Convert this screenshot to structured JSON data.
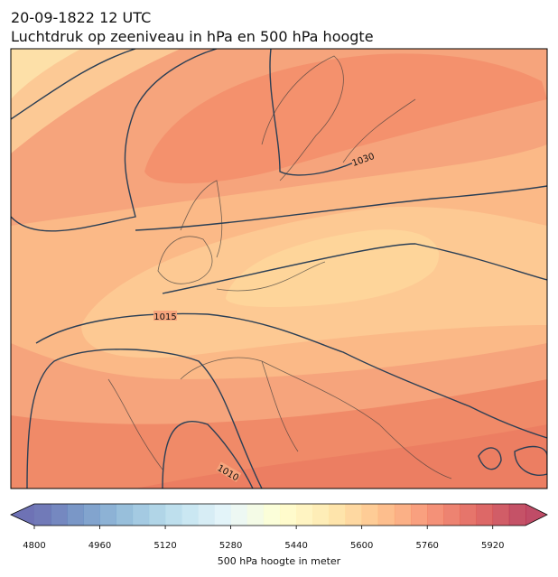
{
  "header": {
    "title": "20-09-1822 12 UTC",
    "subtitle": "Luchtdruk op zeeniveau in hPa en 500 hPa hoogte"
  },
  "map": {
    "contour_labels": [
      1030,
      1015,
      1010
    ]
  },
  "colorbar": {
    "lim": [
      4800,
      6000
    ],
    "step": 40,
    "ticks": [
      4800,
      4960,
      5120,
      5280,
      5440,
      5600,
      5760,
      5920
    ],
    "colormap": [
      "#313695",
      "#4575b4",
      "#74add1",
      "#abd9e9",
      "#e0f3f8",
      "#ffffbf",
      "#fee090",
      "#fdae61",
      "#f46d43",
      "#d73027",
      "#a50026"
    ],
    "alpha": 0.7,
    "label": "500 hPa hoogte in meter"
  }
}
